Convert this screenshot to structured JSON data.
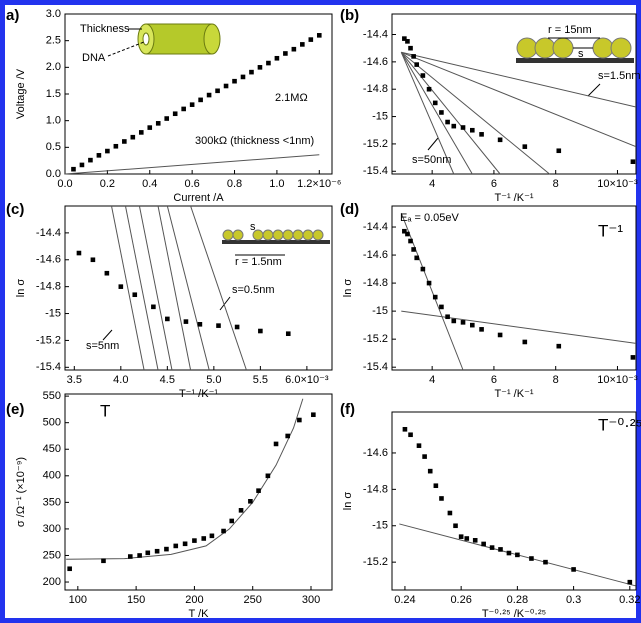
{
  "chart_data": [
    {
      "type": "scatter",
      "title": "a)",
      "x_label": "Current /A",
      "y_label": "Voltage /V",
      "color": "#000000",
      "line_color": "#555555",
      "x": [
        4e-08,
        8e-08,
        1.2e-07,
        1.6e-07,
        2e-07,
        2.4e-07,
        2.8e-07,
        3.2e-07,
        3.6e-07,
        4e-07,
        4.4e-07,
        4.8e-07,
        5.2e-07,
        5.6e-07,
        6e-07,
        6.4e-07,
        6.8e-07,
        7.2e-07,
        7.6e-07,
        8e-07,
        8.4e-07,
        8.8e-07,
        9.2e-07,
        9.6e-07,
        1e-06,
        1.04e-06,
        1.08e-06,
        1.12e-06,
        1.16e-06,
        1.2e-06
      ],
      "values": [
        0.09,
        0.17,
        0.26,
        0.35,
        0.43,
        0.52,
        0.61,
        0.69,
        0.78,
        0.87,
        0.95,
        1.04,
        1.13,
        1.22,
        1.3,
        1.39,
        1.48,
        1.56,
        1.65,
        1.74,
        1.82,
        1.91,
        2.0,
        2.08,
        2.17,
        2.26,
        2.34,
        2.43,
        2.52,
        2.6
      ],
      "lines": [
        {
          "x": [
            0,
            1.2e-06
          ],
          "values": [
            0,
            0.36
          ]
        }
      ],
      "xlim": [
        0,
        1.26e-06
      ],
      "ylim": [
        0,
        3.0
      ],
      "xticks": [
        {
          "value": 0,
          "label": "0.0"
        },
        {
          "value": 2e-07,
          "label": "0.2"
        },
        {
          "value": 4e-07,
          "label": "0.4"
        },
        {
          "value": 6e-07,
          "label": "0.6"
        },
        {
          "value": 8e-07,
          "label": "0.8"
        },
        {
          "value": 1e-06,
          "label": "1.0"
        },
        {
          "value": 1.2e-06,
          "label": "1.2×10⁻⁶"
        }
      ],
      "yticks": [
        {
          "value": 0,
          "label": "0.0"
        },
        {
          "value": 0.5,
          "label": "0.5"
        },
        {
          "value": 1.0,
          "label": "1.0"
        },
        {
          "value": 1.5,
          "label": "1.5"
        },
        {
          "value": 2.0,
          "label": "2.0"
        },
        {
          "value": 2.5,
          "label": "2.5"
        },
        {
          "value": 3.0,
          "label": "3.0"
        }
      ],
      "annotations": [
        "Thickness",
        "DNA",
        "2.1MΩ",
        "300kΩ (thickness <1nm)"
      ]
    },
    {
      "type": "scatter",
      "title": "(b)",
      "x_label": "T⁻¹ /K⁻¹",
      "color": "#000000",
      "line_color": "#555555",
      "x": [
        0.0031,
        0.0032,
        0.0033,
        0.0034,
        0.0035,
        0.0037,
        0.0039,
        0.0041,
        0.0043,
        0.0045,
        0.0047,
        0.005,
        0.0053,
        0.0056,
        0.0062,
        0.007,
        0.0081,
        0.0105
      ],
      "values": [
        -14.43,
        -14.45,
        -14.5,
        -14.56,
        -14.62,
        -14.7,
        -14.8,
        -14.9,
        -14.97,
        -15.04,
        -15.07,
        -15.08,
        -15.1,
        -15.13,
        -15.17,
        -15.22,
        -15.25,
        -15.33
      ],
      "lines": [
        {
          "x": [
            0.003,
            0.0047
          ],
          "values": [
            -14.53,
            -15.42
          ]
        },
        {
          "x": [
            0.003,
            0.0053
          ],
          "values": [
            -14.53,
            -15.42
          ]
        },
        {
          "x": [
            0.003,
            0.0062
          ],
          "values": [
            -14.53,
            -15.42
          ]
        },
        {
          "x": [
            0.003,
            0.0078
          ],
          "values": [
            -14.53,
            -15.42
          ]
        },
        {
          "x": [
            0.003,
            0.0106
          ],
          "values": [
            -14.53,
            -15.22
          ]
        },
        {
          "x": [
            0.003,
            0.0106
          ],
          "values": [
            -14.53,
            -14.93
          ]
        }
      ],
      "xlim": [
        0.0027,
        0.0106
      ],
      "ylim": [
        -15.42,
        -14.25
      ],
      "xticks": [
        {
          "value": 0.004,
          "label": "4"
        },
        {
          "value": 0.006,
          "label": "6"
        },
        {
          "value": 0.008,
          "label": "8"
        },
        {
          "value": 0.01,
          "label": "10×10⁻³"
        }
      ],
      "yticks": [
        -14.4,
        -14.6,
        -14.8,
        -15.0,
        -15.2,
        -15.4
      ],
      "annotations": [
        "r = 15nm",
        "s",
        "s=1.5nm",
        "s=50nm"
      ]
    },
    {
      "type": "scatter",
      "title": "(c)",
      "x_label": "T⁻¹ /K⁻¹",
      "y_label": "ln σ",
      "color": "#000000",
      "line_color": "#555555",
      "x": [
        0.00355,
        0.0037,
        0.00385,
        0.004,
        0.00415,
        0.00435,
        0.0045,
        0.0047,
        0.00485,
        0.00505,
        0.00525,
        0.0055,
        0.0058
      ],
      "values": [
        -14.55,
        -14.6,
        -14.7,
        -14.8,
        -14.86,
        -14.95,
        -15.04,
        -15.06,
        -15.08,
        -15.09,
        -15.1,
        -15.13,
        -15.15
      ],
      "lines": [
        {
          "x": [
            0.0039,
            0.00425
          ],
          "values": [
            -14.2,
            -15.42
          ]
        },
        {
          "x": [
            0.00405,
            0.0044
          ],
          "values": [
            -14.2,
            -15.42
          ]
        },
        {
          "x": [
            0.0042,
            0.00455
          ],
          "values": [
            -14.2,
            -15.42
          ]
        },
        {
          "x": [
            0.0044,
            0.00475
          ],
          "values": [
            -14.2,
            -15.42
          ]
        },
        {
          "x": [
            0.0045,
            0.00495
          ],
          "values": [
            -14.2,
            -15.42
          ]
        },
        {
          "x": [
            0.00475,
            0.00535
          ],
          "values": [
            -14.2,
            -15.42
          ]
        }
      ],
      "xlim": [
        0.0034,
        0.00627
      ],
      "ylim": [
        -15.42,
        -14.2
      ],
      "xticks": [
        {
          "value": 0.0035,
          "label": "3.5"
        },
        {
          "value": 0.004,
          "label": "4.0"
        },
        {
          "value": 0.0045,
          "label": "4.5"
        },
        {
          "value": 0.005,
          "label": "5.0"
        },
        {
          "value": 0.0055,
          "label": "5.5"
        },
        {
          "value": 0.006,
          "label": "6.0×10⁻³"
        }
      ],
      "yticks": [
        -14.4,
        -14.6,
        -14.8,
        -15.0,
        -15.2,
        -15.4
      ],
      "annotations": [
        "r = 1.5nm",
        "s",
        "s=0.5nm",
        "s=5nm"
      ]
    },
    {
      "type": "scatter",
      "title": "(d)",
      "x_label": "T⁻¹ /K⁻¹",
      "y_label": "ln σ",
      "color": "#000000",
      "line_color": "#555555",
      "x": [
        0.0031,
        0.0032,
        0.0033,
        0.0034,
        0.0035,
        0.0037,
        0.0039,
        0.0041,
        0.0043,
        0.0045,
        0.0047,
        0.005,
        0.0053,
        0.0056,
        0.0062,
        0.007,
        0.0081,
        0.0105
      ],
      "values": [
        -14.43,
        -14.45,
        -14.5,
        -14.56,
        -14.62,
        -14.7,
        -14.8,
        -14.9,
        -14.97,
        -15.04,
        -15.07,
        -15.08,
        -15.1,
        -15.13,
        -15.17,
        -15.22,
        -15.25,
        -15.33
      ],
      "lines": [
        {
          "x": [
            0.003,
            0.005
          ],
          "values": [
            -14.3,
            -15.42
          ]
        },
        {
          "x": [
            0.003,
            0.0106
          ],
          "values": [
            -15.0,
            -15.23
          ]
        }
      ],
      "xlim": [
        0.0027,
        0.0106
      ],
      "ylim": [
        -15.42,
        -14.25
      ],
      "xticks": [
        {
          "value": 0.004,
          "label": "4"
        },
        {
          "value": 0.006,
          "label": "6"
        },
        {
          "value": 0.008,
          "label": "8"
        },
        {
          "value": 0.01,
          "label": "10×10⁻³"
        }
      ],
      "yticks": [
        -14.4,
        -14.6,
        -14.8,
        -15.0,
        -15.2,
        -15.4
      ],
      "annotations": [
        "Eₐ = 0.05eV",
        "T⁻¹"
      ]
    },
    {
      "type": "scatter",
      "title": "(e)",
      "x_label": "T /K",
      "y_label": "σ /Ω⁻¹ (×10⁻⁹)",
      "color": "#000000",
      "line_color": "#555555",
      "x": [
        93,
        122,
        145,
        153,
        160,
        168,
        176,
        184,
        192,
        200,
        208,
        215,
        225,
        232,
        240,
        248,
        255,
        263,
        270,
        280,
        290,
        302
      ],
      "values": [
        225,
        240,
        248,
        250,
        255,
        258,
        262,
        268,
        272,
        278,
        282,
        287,
        296,
        315,
        335,
        352,
        372,
        400,
        460,
        475,
        505,
        515
      ],
      "lines": [
        {
          "x": [
            90,
            140,
            180,
            210,
            230,
            250,
            270,
            285,
            293
          ],
          "values": [
            243,
            244,
            252,
            268,
            300,
            350,
            420,
            490,
            545
          ]
        }
      ],
      "xlim": [
        89,
        318
      ],
      "ylim": [
        185,
        554
      ],
      "xticks": [
        100,
        150,
        200,
        250,
        300
      ],
      "yticks": [
        200,
        250,
        300,
        350,
        400,
        450,
        500,
        550
      ],
      "annotations": [
        "T"
      ]
    },
    {
      "type": "scatter",
      "title": "(f)",
      "x_label": "T⁻⁰·²⁵ /K⁻⁰·²⁵",
      "y_label": "ln σ",
      "color": "#000000",
      "line_color": "#555555",
      "x": [
        0.24,
        0.242,
        0.245,
        0.247,
        0.249,
        0.251,
        0.253,
        0.256,
        0.258,
        0.26,
        0.262,
        0.265,
        0.268,
        0.271,
        0.274,
        0.277,
        0.28,
        0.285,
        0.29,
        0.3,
        0.32
      ],
      "values": [
        -14.47,
        -14.5,
        -14.56,
        -14.62,
        -14.7,
        -14.78,
        -14.85,
        -14.93,
        -15.0,
        -15.06,
        -15.07,
        -15.08,
        -15.1,
        -15.12,
        -15.13,
        -15.15,
        -15.16,
        -15.18,
        -15.2,
        -15.24,
        -15.31
      ],
      "lines": [
        {
          "x": [
            0.238,
            0.322
          ],
          "values": [
            -14.99,
            -15.33
          ]
        }
      ],
      "xlim": [
        0.2354,
        0.3222
      ],
      "ylim": [
        -15.353,
        -14.375
      ],
      "xticks": [
        0.24,
        0.26,
        0.28,
        0.3,
        0.32
      ],
      "yticks": [
        -14.6,
        -14.8,
        -15.0,
        -15.2
      ],
      "annotations": [
        "T⁻⁰·²⁵"
      ]
    }
  ]
}
